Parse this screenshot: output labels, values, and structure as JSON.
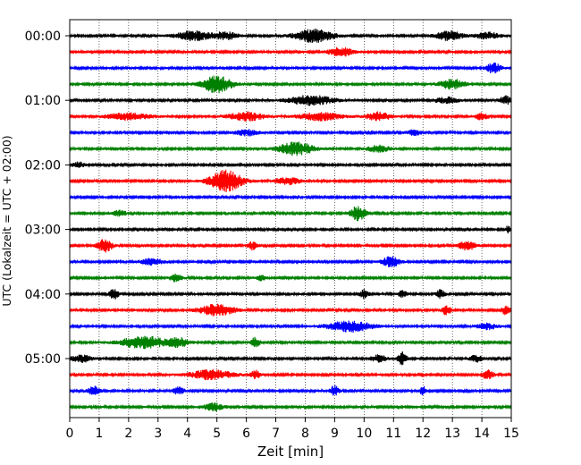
{
  "chart_data": {
    "type": "line",
    "subtype": "helicorder-seismogram",
    "xlabel": "Zeit  [min]",
    "ylabel": "UTC (Lokalzeit = UTC + 02:00)",
    "xlim": [
      0,
      15
    ],
    "x_ticks": [
      "0",
      "1",
      "2",
      "3",
      "4",
      "5",
      "6",
      "7",
      "8",
      "9",
      "10",
      "11",
      "12",
      "13",
      "14",
      "15"
    ],
    "y_ticks": [
      "00:00",
      "01:00",
      "02:00",
      "03:00",
      "04:00",
      "05:00"
    ],
    "grid": "vertical dotted lines at each minute",
    "trace_interval_min": 15,
    "trace_colors": [
      "#000000",
      "#ff0000",
      "#0000ff",
      "#008000"
    ],
    "noise_amplitude": 0.12,
    "traces": [
      {
        "start": "00:00",
        "color": "#000000",
        "bursts": [
          [
            4.2,
            1.2,
            0.55
          ],
          [
            5.3,
            0.8,
            0.45
          ],
          [
            8.3,
            1.3,
            0.75
          ],
          [
            12.9,
            0.9,
            0.55
          ],
          [
            14.2,
            0.8,
            0.4
          ]
        ]
      },
      {
        "start": "00:15",
        "color": "#ff0000",
        "bursts": [
          [
            9.2,
            0.8,
            0.55
          ]
        ]
      },
      {
        "start": "00:30",
        "color": "#0000ff",
        "bursts": [
          [
            14.4,
            0.5,
            0.6
          ]
        ]
      },
      {
        "start": "00:45",
        "color": "#008000",
        "bursts": [
          [
            5.0,
            1.0,
            1.0
          ],
          [
            13.0,
            0.9,
            0.55
          ]
        ]
      },
      {
        "start": "01:00",
        "color": "#000000",
        "bursts": [
          [
            8.2,
            1.6,
            0.55
          ],
          [
            12.8,
            0.8,
            0.35
          ],
          [
            14.8,
            0.4,
            0.5
          ]
        ]
      },
      {
        "start": "01:15",
        "color": "#ff0000",
        "bursts": [
          [
            2.0,
            1.5,
            0.4
          ],
          [
            6.0,
            1.2,
            0.5
          ],
          [
            8.5,
            1.5,
            0.45
          ],
          [
            10.5,
            0.8,
            0.5
          ],
          [
            14.0,
            0.5,
            0.4
          ]
        ]
      },
      {
        "start": "01:30",
        "color": "#0000ff",
        "bursts": [
          [
            6.0,
            0.8,
            0.35
          ],
          [
            11.7,
            0.5,
            0.3
          ]
        ]
      },
      {
        "start": "01:45",
        "color": "#008000",
        "bursts": [
          [
            7.7,
            1.2,
            0.75
          ],
          [
            10.5,
            0.8,
            0.4
          ]
        ]
      },
      {
        "start": "02:00",
        "color": "#000000",
        "bursts": [
          [
            0.3,
            0.4,
            0.3
          ]
        ]
      },
      {
        "start": "02:15",
        "color": "#ff0000",
        "bursts": [
          [
            5.3,
            1.1,
            1.25
          ],
          [
            7.4,
            0.9,
            0.4
          ]
        ]
      },
      {
        "start": "02:30",
        "color": "#0000ff",
        "bursts": []
      },
      {
        "start": "02:45",
        "color": "#008000",
        "bursts": [
          [
            1.7,
            0.5,
            0.3
          ],
          [
            9.8,
            0.5,
            0.9
          ]
        ]
      },
      {
        "start": "03:00",
        "color": "#000000",
        "bursts": [
          [
            14.9,
            0.2,
            0.4
          ]
        ]
      },
      {
        "start": "03:15",
        "color": "#ff0000",
        "bursts": [
          [
            1.2,
            0.5,
            0.75
          ],
          [
            6.2,
            0.3,
            0.5
          ],
          [
            13.5,
            0.6,
            0.5
          ]
        ]
      },
      {
        "start": "03:30",
        "color": "#0000ff",
        "bursts": [
          [
            2.8,
            0.8,
            0.35
          ],
          [
            10.9,
            0.6,
            0.65
          ]
        ]
      },
      {
        "start": "03:45",
        "color": "#008000",
        "bursts": [
          [
            3.6,
            0.4,
            0.45
          ],
          [
            6.5,
            0.4,
            0.3
          ]
        ]
      },
      {
        "start": "04:00",
        "color": "#000000",
        "bursts": [
          [
            1.5,
            0.3,
            0.6
          ],
          [
            10.0,
            0.3,
            0.5
          ],
          [
            11.3,
            0.3,
            0.4
          ],
          [
            12.6,
            0.3,
            0.5
          ]
        ]
      },
      {
        "start": "04:15",
        "color": "#ff0000",
        "bursts": [
          [
            5.0,
            1.2,
            0.65
          ],
          [
            12.8,
            0.3,
            0.6
          ],
          [
            14.8,
            0.3,
            0.5
          ]
        ]
      },
      {
        "start": "04:30",
        "color": "#0000ff",
        "bursts": [
          [
            9.5,
            1.5,
            0.65
          ],
          [
            14.2,
            0.7,
            0.35
          ]
        ]
      },
      {
        "start": "04:45",
        "color": "#008000",
        "bursts": [
          [
            2.5,
            1.5,
            0.75
          ],
          [
            3.7,
            0.7,
            0.5
          ],
          [
            6.3,
            0.3,
            0.55
          ]
        ]
      },
      {
        "start": "05:00",
        "color": "#000000",
        "bursts": [
          [
            0.4,
            0.7,
            0.4
          ],
          [
            10.5,
            0.5,
            0.4
          ],
          [
            11.3,
            0.3,
            0.8
          ],
          [
            13.8,
            0.4,
            0.4
          ]
        ]
      },
      {
        "start": "05:15",
        "color": "#ff0000",
        "bursts": [
          [
            4.8,
            1.5,
            0.55
          ],
          [
            6.3,
            0.3,
            0.5
          ],
          [
            14.2,
            0.4,
            0.5
          ]
        ]
      },
      {
        "start": "05:30",
        "color": "#0000ff",
        "bursts": [
          [
            0.8,
            0.4,
            0.55
          ],
          [
            3.7,
            0.4,
            0.4
          ],
          [
            9.0,
            0.3,
            0.6
          ],
          [
            12.0,
            0.2,
            0.5
          ]
        ]
      },
      {
        "start": "05:45",
        "color": "#008000",
        "bursts": [
          [
            4.9,
            0.7,
            0.45
          ]
        ]
      }
    ]
  }
}
